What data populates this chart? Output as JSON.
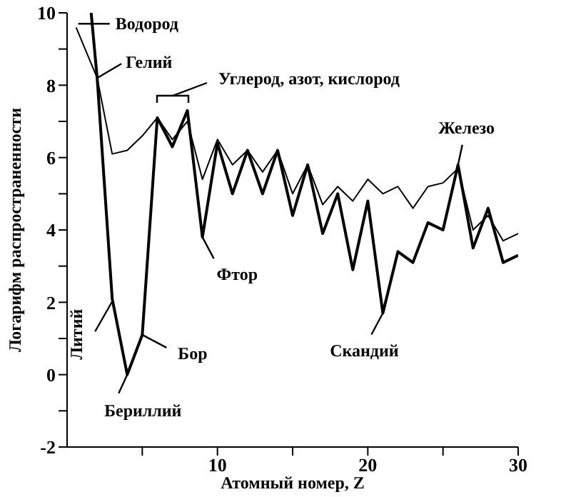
{
  "chart_data": {
    "type": "line",
    "xlabel": "Атомный номер, Z",
    "ylabel": "Логарифм распространенности",
    "xlim": [
      0,
      30
    ],
    "xticks": [
      {
        "value": 5,
        "label": null
      },
      10,
      {
        "value": 15,
        "label": null
      },
      20,
      {
        "value": 25,
        "label": null
      },
      30
    ],
    "ylim": [
      -2,
      10
    ],
    "yticks": [
      -2,
      {
        "value": -1,
        "label": null
      },
      0,
      {
        "value": 1,
        "label": null
      },
      2,
      {
        "value": 3,
        "label": null
      },
      4,
      {
        "value": 5,
        "label": null
      },
      6,
      {
        "value": 7,
        "label": null
      },
      8,
      {
        "value": 9,
        "label": null
      },
      10
    ],
    "marker": "none",
    "line_style": "solid",
    "series": [
      {
        "color": "#000000",
        "x": [
          1.6,
          2,
          3,
          4,
          5,
          6,
          7,
          8,
          9,
          10,
          11,
          12,
          13,
          14,
          15,
          16,
          17,
          18,
          19,
          20,
          21,
          22,
          23,
          24,
          25,
          26,
          27,
          28,
          29,
          30
        ],
        "values": [
          10,
          8.2,
          2.1,
          0,
          1.1,
          7.1,
          6.3,
          7.3,
          3.8,
          6.4,
          5.0,
          6.2,
          5.0,
          6.2,
          4.4,
          5.8,
          3.9,
          5.0,
          2.9,
          4.8,
          1.7,
          3.4,
          3.1,
          4.2,
          4.0,
          5.8,
          3.5,
          4.6,
          3.1,
          3.3
        ]
      },
      {
        "color": "#000000",
        "x": [
          0.6,
          2,
          3,
          4,
          5,
          6,
          7,
          8,
          9,
          10,
          11,
          12,
          13,
          14,
          15,
          16,
          17,
          18,
          19,
          20,
          21,
          22,
          23,
          24,
          25,
          26,
          27,
          28,
          29,
          30
        ],
        "values": [
          9.6,
          8.2,
          6.1,
          6.2,
          6.6,
          7.1,
          6.5,
          7.0,
          5.4,
          6.5,
          5.8,
          6.2,
          5.6,
          6.2,
          5.0,
          5.8,
          4.7,
          5.2,
          4.8,
          5.4,
          5.0,
          5.2,
          4.6,
          5.2,
          5.3,
          5.7,
          4.0,
          4.4,
          3.7,
          3.9
        ]
      }
    ],
    "annotations": [
      {
        "text": "Водород",
        "x": 1.6,
        "y": 9.7
      },
      {
        "text": "Гелий",
        "x": 2,
        "y": 8.2
      },
      "Углерод, азот, кислород",
      {
        "text": "Литий",
        "x": 3,
        "y": 2.1
      },
      {
        "text": "Бериллий",
        "x": 4,
        "y": 0
      },
      {
        "text": "Бор",
        "x": 5,
        "y": 1.1
      },
      {
        "text": "Фтор",
        "x": 9,
        "y": 3.8
      },
      {
        "text": "Скандий",
        "x": 21,
        "y": 1.7
      },
      {
        "text": "Железо",
        "x": 26,
        "y": 5.8
      }
    ]
  }
}
